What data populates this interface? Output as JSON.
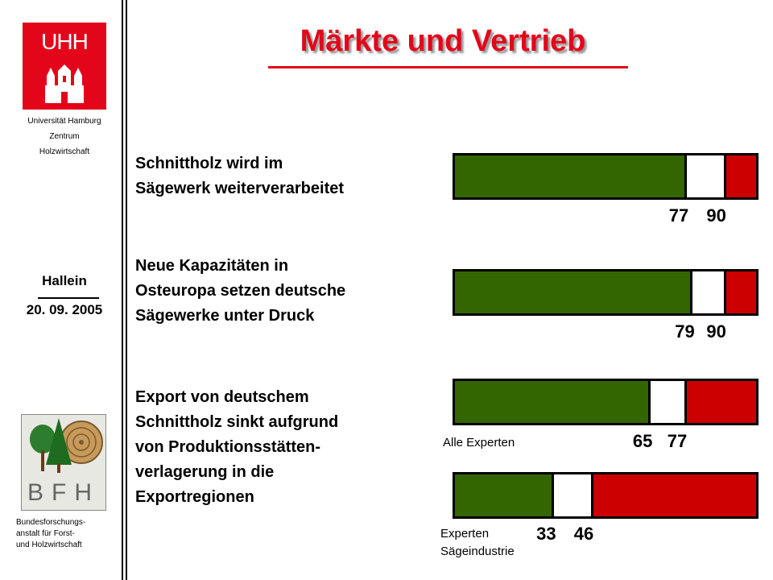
{
  "header": {
    "title": "Märkte und Vertrieb"
  },
  "sidebar": {
    "university": [
      "Universität Hamburg",
      "Zentrum",
      "Holzwirtschaft"
    ],
    "uhh_logo_text": "UHH",
    "place": "Hallein",
    "date": "20. 09. 2005",
    "bfh_logo_text": "BFH",
    "institute": [
      "Bundesforschungs-",
      "anstalt für Forst-",
      "und Holzwirtschaft"
    ]
  },
  "statements": [
    "Schnittholz wird im\nSägewerk weiterverarbeitet",
    "Neue Kapazitäten in\nOsteuropa setzen deutsche\nSägewerke unter Druck",
    "Export von deutschem\nSchnittholz sinkt aufgrund\nvon Produktionsstätten-\nverlagerung in die\nExportregionen"
  ],
  "colors": {
    "agree": "#336600",
    "neutral": "#ffffff",
    "disagree": "#cc0000",
    "title": "#e3061b"
  },
  "chart_data": {
    "type": "bar",
    "orientation": "horizontal-stacked",
    "axis_range": [
      0,
      100
    ],
    "bars": [
      {
        "group_label": "",
        "cumulative": [
          77,
          90
        ],
        "segments": [
          77,
          13,
          10
        ]
      },
      {
        "group_label": "",
        "cumulative": [
          79,
          90
        ],
        "segments": [
          79,
          11,
          10
        ]
      },
      {
        "group_label": "Alle Experten",
        "cumulative": [
          65,
          77
        ],
        "segments": [
          65,
          12,
          23
        ]
      },
      {
        "group_label": "Experten\nSägeindustrie",
        "cumulative": [
          33,
          46
        ],
        "segments": [
          33,
          13,
          54
        ]
      }
    ]
  }
}
